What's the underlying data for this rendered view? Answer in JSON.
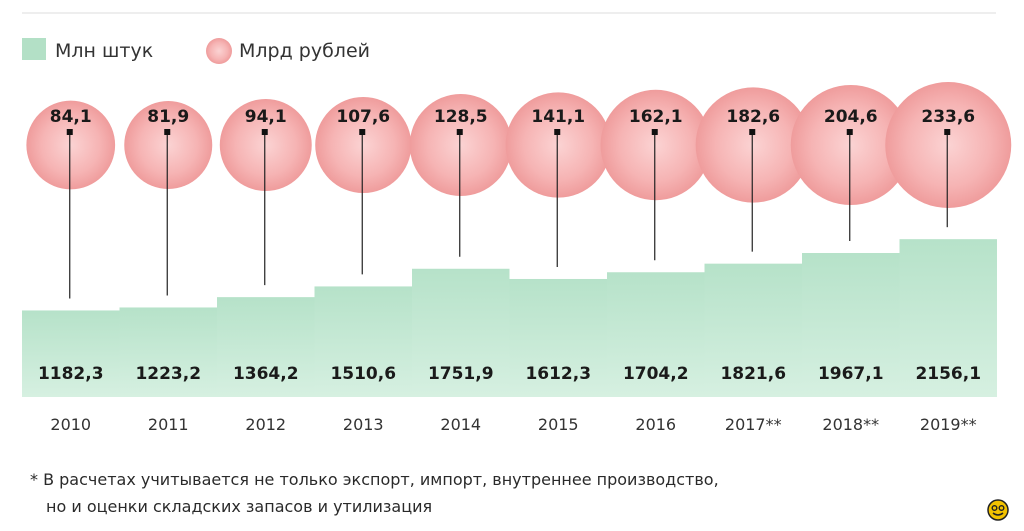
{
  "chart_data": {
    "type": "bar",
    "categories": [
      "2010",
      "2011",
      "2012",
      "2013",
      "2014",
      "2015",
      "2016",
      "2017**",
      "2018**",
      "2019**"
    ],
    "series": [
      {
        "name": "Млн штук",
        "values": [
          1182.3,
          1223.2,
          1364.2,
          1510.6,
          1751.9,
          1612.3,
          1704.2,
          1821.6,
          1967.1,
          2156.1
        ],
        "labels": [
          "1182,3",
          "1223,2",
          "1364,2",
          "1510,6",
          "1751,9",
          "1612,3",
          "1704,2",
          "1821,6",
          "1967,1",
          "2156,1"
        ]
      },
      {
        "name": "Млрд рублей",
        "values": [
          84.1,
          81.9,
          94.1,
          107.6,
          128.5,
          141.1,
          162.1,
          182.6,
          204.6,
          233.6
        ],
        "labels": [
          "84,1",
          "81,9",
          "94,1",
          "107,6",
          "128,5",
          "141,1",
          "162,1",
          "182,6",
          "204,6",
          "233,6"
        ]
      }
    ],
    "legend_position": "top-left",
    "colors": {
      "bars": "#c3e8d4",
      "bubbles": "#f2a3a3",
      "bubble_fill": "#f7bcbc"
    }
  },
  "footnote": {
    "line1": "* В расчетах учитывается не только экспорт, импорт, внутреннее производство,",
    "line2": "но и оценки складских запасов и утилизация"
  },
  "logo_icon": "smiley-logo-icon"
}
